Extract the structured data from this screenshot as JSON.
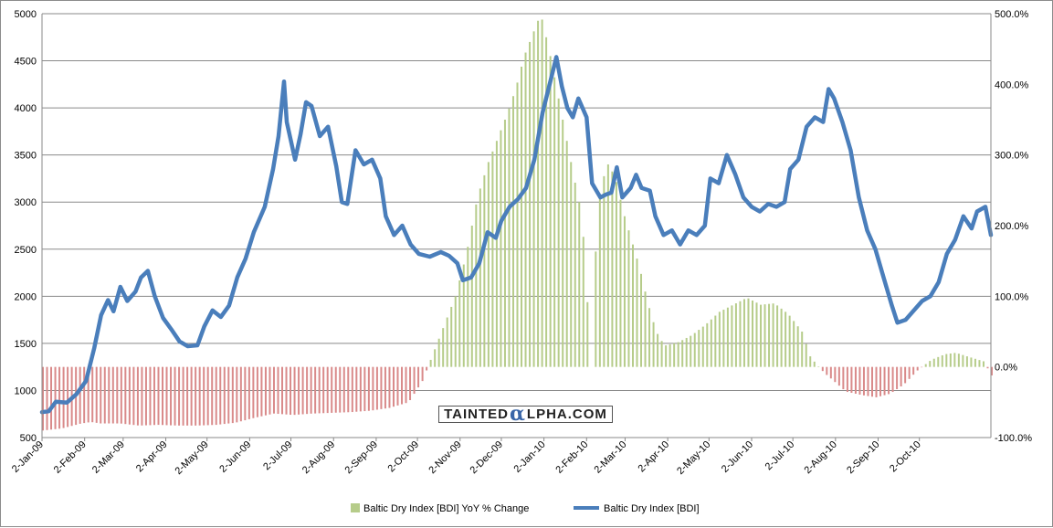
{
  "chart_data": {
    "type": "bar-line-combo",
    "left_axis": {
      "ylim": [
        500,
        5000
      ],
      "ticks": [
        "500",
        "1000",
        "1500",
        "2000",
        "2500",
        "3000",
        "3500",
        "4000",
        "4500",
        "5000"
      ]
    },
    "right_axis": {
      "ylim": [
        -100,
        500
      ],
      "ticks": [
        "-100.0%",
        "0.0%",
        "100.0%",
        "200.0%",
        "300.0%",
        "400.0%",
        "500.0%"
      ]
    },
    "x_ticks": [
      "2-Jan-09",
      "2-Feb-09",
      "2-Mar-09",
      "2-Apr-09",
      "2-May-09",
      "2-Jun-09",
      "2-Jul-09",
      "2-Aug-09",
      "2-Sep-09",
      "2-Oct-09",
      "2-Nov-09",
      "2-Dec-09",
      "2-Jan-10",
      "2-Feb-10",
      "2-Mar-10",
      "2-Apr-10",
      "2-May-10",
      "2-Jun-10",
      "2-Jul-10",
      "2-Aug-10",
      "2-Sep-10",
      "2-Oct-10"
    ],
    "x_range_days": [
      0,
      690
    ],
    "grid": true,
    "legend_position": "bottom",
    "series": [
      {
        "name": "Baltic Dry Index [BDI] YoY % Change",
        "type": "bar",
        "axis": "right",
        "color_pos": "#b6cc8a",
        "color_neg": "#d98a8a",
        "points": [
          [
            0,
            -90
          ],
          [
            14,
            -87
          ],
          [
            28,
            -80
          ],
          [
            35,
            -78
          ],
          [
            42,
            -80
          ],
          [
            56,
            -80
          ],
          [
            70,
            -83
          ],
          [
            84,
            -82
          ],
          [
            98,
            -83
          ],
          [
            112,
            -83
          ],
          [
            126,
            -82
          ],
          [
            140,
            -79
          ],
          [
            154,
            -72
          ],
          [
            168,
            -66
          ],
          [
            182,
            -68
          ],
          [
            196,
            -66
          ],
          [
            210,
            -65
          ],
          [
            224,
            -64
          ],
          [
            238,
            -62
          ],
          [
            252,
            -58
          ],
          [
            266,
            -50
          ],
          [
            276,
            -20
          ],
          [
            284,
            20
          ],
          [
            292,
            60
          ],
          [
            300,
            100
          ],
          [
            308,
            160
          ],
          [
            316,
            240
          ],
          [
            324,
            290
          ],
          [
            332,
            330
          ],
          [
            338,
            360
          ],
          [
            344,
            395
          ],
          [
            350,
            440
          ],
          [
            356,
            470
          ],
          [
            362,
            500
          ],
          [
            368,
            450
          ],
          [
            374,
            390
          ],
          [
            380,
            330
          ],
          [
            386,
            270
          ],
          [
            392,
            215
          ],
          [
            398,
            30
          ],
          [
            404,
            230
          ],
          [
            410,
            290
          ],
          [
            416,
            270
          ],
          [
            422,
            220
          ],
          [
            428,
            180
          ],
          [
            434,
            140
          ],
          [
            440,
            90
          ],
          [
            446,
            50
          ],
          [
            452,
            30
          ],
          [
            462,
            35
          ],
          [
            472,
            45
          ],
          [
            482,
            60
          ],
          [
            492,
            78
          ],
          [
            502,
            88
          ],
          [
            512,
            98
          ],
          [
            522,
            88
          ],
          [
            532,
            90
          ],
          [
            542,
            75
          ],
          [
            552,
            50
          ],
          [
            558,
            15
          ],
          [
            562,
            5
          ],
          [
            568,
            -8
          ],
          [
            574,
            -18
          ],
          [
            584,
            -35
          ],
          [
            596,
            -40
          ],
          [
            606,
            -43
          ],
          [
            616,
            -38
          ],
          [
            626,
            -25
          ],
          [
            636,
            -5
          ],
          [
            646,
            10
          ],
          [
            656,
            18
          ],
          [
            664,
            20
          ],
          [
            672,
            15
          ],
          [
            684,
            8
          ],
          [
            690,
            -12
          ]
        ]
      },
      {
        "name": "Baltic Dry Index [BDI]",
        "type": "line",
        "axis": "left",
        "color": "#4a7ebb",
        "points": [
          [
            0,
            770
          ],
          [
            5,
            780
          ],
          [
            10,
            880
          ],
          [
            18,
            870
          ],
          [
            25,
            960
          ],
          [
            32,
            1100
          ],
          [
            38,
            1450
          ],
          [
            43,
            1800
          ],
          [
            48,
            1960
          ],
          [
            52,
            1840
          ],
          [
            57,
            2100
          ],
          [
            62,
            1950
          ],
          [
            68,
            2050
          ],
          [
            72,
            2200
          ],
          [
            77,
            2270
          ],
          [
            82,
            2000
          ],
          [
            88,
            1770
          ],
          [
            94,
            1650
          ],
          [
            100,
            1520
          ],
          [
            106,
            1470
          ],
          [
            113,
            1480
          ],
          [
            118,
            1680
          ],
          [
            124,
            1850
          ],
          [
            130,
            1780
          ],
          [
            136,
            1900
          ],
          [
            142,
            2200
          ],
          [
            148,
            2400
          ],
          [
            154,
            2680
          ],
          [
            162,
            2950
          ],
          [
            168,
            3350
          ],
          [
            172,
            3700
          ],
          [
            176,
            4280
          ],
          [
            178,
            3850
          ],
          [
            184,
            3450
          ],
          [
            188,
            3720
          ],
          [
            192,
            4060
          ],
          [
            196,
            4020
          ],
          [
            202,
            3700
          ],
          [
            208,
            3800
          ],
          [
            214,
            3380
          ],
          [
            218,
            3000
          ],
          [
            222,
            2980
          ],
          [
            228,
            3550
          ],
          [
            234,
            3400
          ],
          [
            240,
            3450
          ],
          [
            246,
            3250
          ],
          [
            250,
            2850
          ],
          [
            256,
            2650
          ],
          [
            262,
            2750
          ],
          [
            268,
            2550
          ],
          [
            274,
            2450
          ],
          [
            282,
            2420
          ],
          [
            290,
            2470
          ],
          [
            296,
            2430
          ],
          [
            302,
            2350
          ],
          [
            306,
            2170
          ],
          [
            312,
            2200
          ],
          [
            318,
            2350
          ],
          [
            324,
            2680
          ],
          [
            330,
            2620
          ],
          [
            334,
            2800
          ],
          [
            340,
            2950
          ],
          [
            346,
            3030
          ],
          [
            352,
            3150
          ],
          [
            358,
            3450
          ],
          [
            364,
            3950
          ],
          [
            370,
            4300
          ],
          [
            374,
            4540
          ],
          [
            378,
            4230
          ],
          [
            382,
            4000
          ],
          [
            386,
            3900
          ],
          [
            390,
            4100
          ],
          [
            396,
            3900
          ],
          [
            400,
            3200
          ],
          [
            406,
            3050
          ],
          [
            410,
            3080
          ],
          [
            414,
            3100
          ],
          [
            418,
            3370
          ],
          [
            422,
            3050
          ],
          [
            428,
            3150
          ],
          [
            432,
            3290
          ],
          [
            436,
            3150
          ],
          [
            442,
            3120
          ],
          [
            446,
            2850
          ],
          [
            452,
            2650
          ],
          [
            458,
            2700
          ],
          [
            464,
            2550
          ],
          [
            470,
            2700
          ],
          [
            476,
            2650
          ],
          [
            482,
            2750
          ],
          [
            486,
            3250
          ],
          [
            492,
            3200
          ],
          [
            498,
            3500
          ],
          [
            504,
            3300
          ],
          [
            510,
            3050
          ],
          [
            516,
            2950
          ],
          [
            522,
            2900
          ],
          [
            528,
            2980
          ],
          [
            534,
            2950
          ],
          [
            540,
            3000
          ],
          [
            544,
            3350
          ],
          [
            550,
            3450
          ],
          [
            556,
            3800
          ],
          [
            562,
            3900
          ],
          [
            568,
            3850
          ],
          [
            572,
            4200
          ],
          [
            576,
            4100
          ],
          [
            582,
            3850
          ],
          [
            588,
            3550
          ],
          [
            594,
            3050
          ],
          [
            600,
            2700
          ],
          [
            606,
            2500
          ],
          [
            612,
            2200
          ],
          [
            618,
            1900
          ],
          [
            622,
            1720
          ],
          [
            628,
            1750
          ],
          [
            634,
            1850
          ],
          [
            640,
            1950
          ],
          [
            646,
            2000
          ],
          [
            652,
            2150
          ],
          [
            658,
            2450
          ],
          [
            664,
            2600
          ],
          [
            670,
            2850
          ],
          [
            676,
            2720
          ],
          [
            680,
            2900
          ],
          [
            686,
            2950
          ],
          [
            690,
            2650
          ]
        ]
      }
    ]
  },
  "watermark": {
    "text_pre": "TAINTED",
    "text_mid": "α",
    "text_post": "LPHA.COM"
  },
  "legend": {
    "bar_label": "Baltic Dry Index [BDI] YoY % Change",
    "line_label": "Baltic Dry Index [BDI]"
  }
}
